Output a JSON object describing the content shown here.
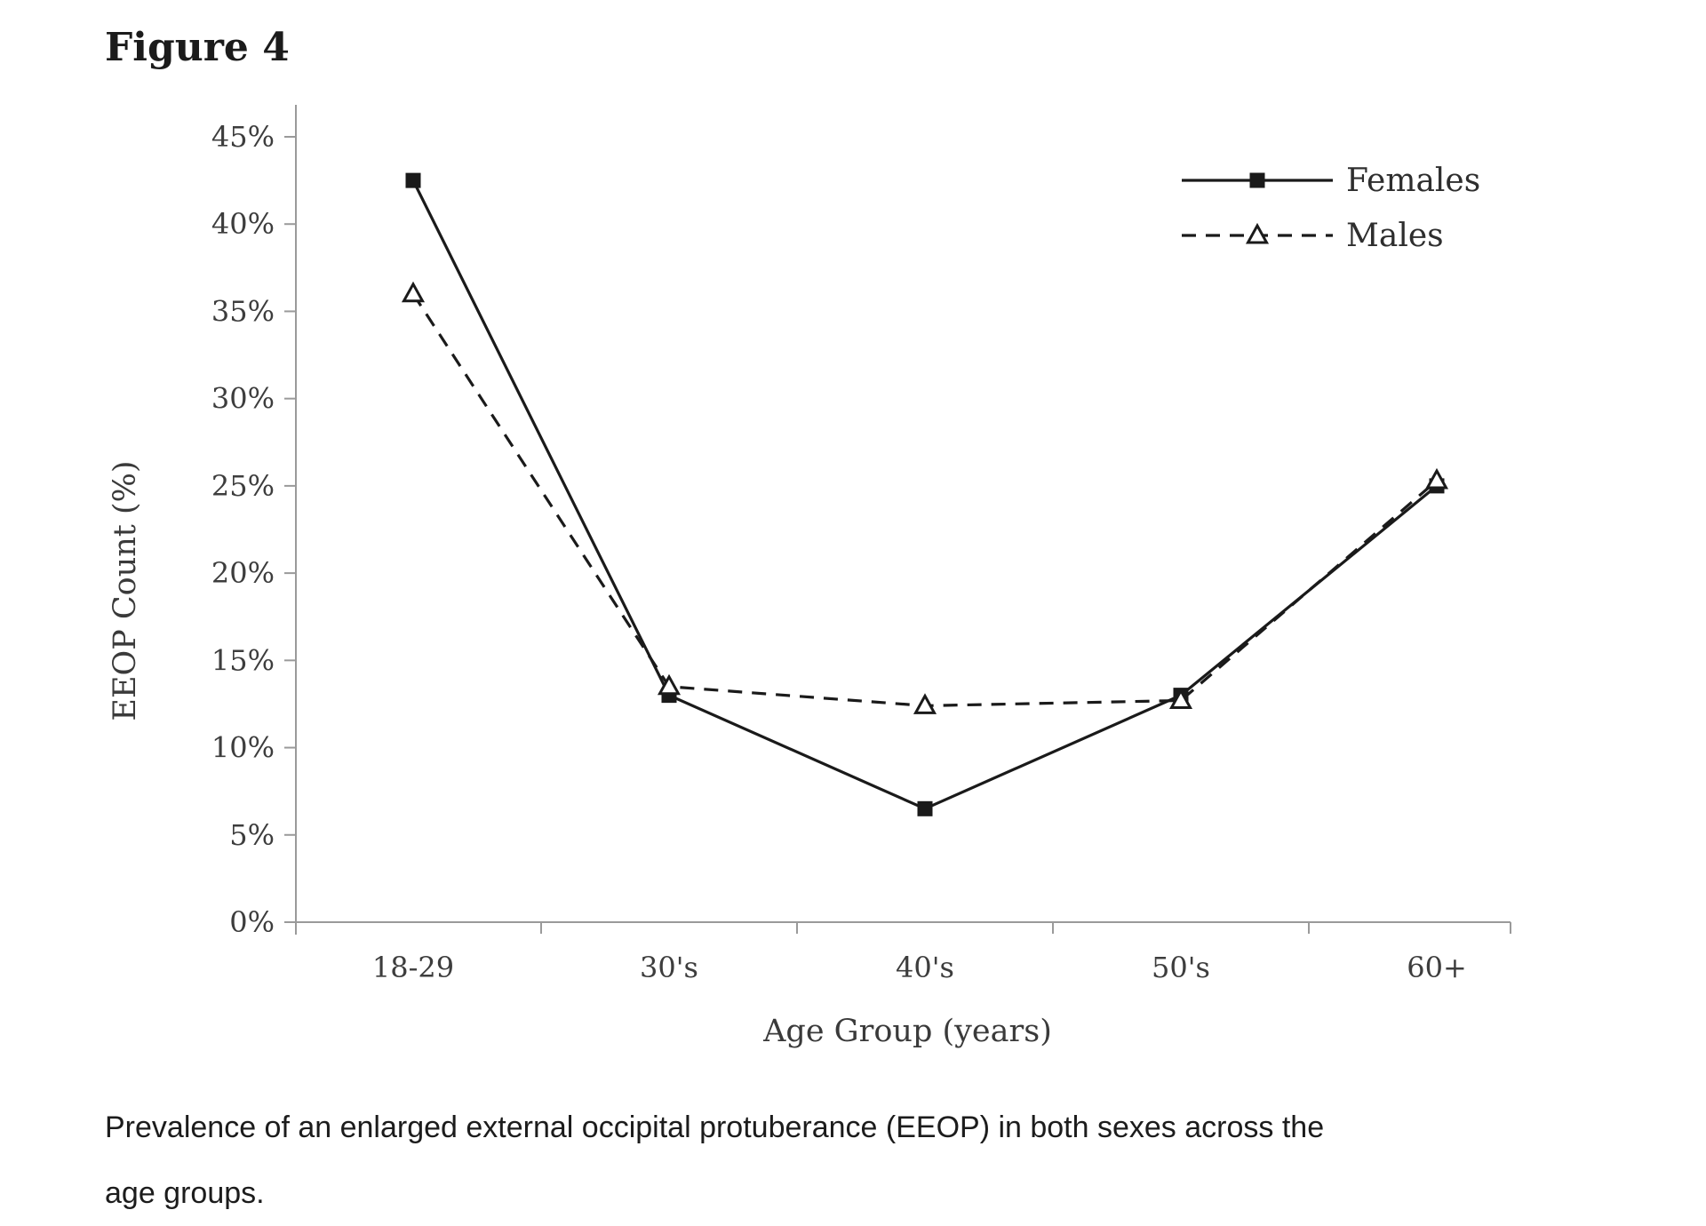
{
  "figure": {
    "title": "Figure 4"
  },
  "caption": {
    "line1": "Prevalence of an enlarged external occipital protuberance (EEOP) in both sexes across the",
    "line2": "age groups."
  },
  "chart_data": {
    "type": "line",
    "categories": [
      "18-29",
      "30's",
      "40's",
      "50's",
      "60+"
    ],
    "series": [
      {
        "name": "Females",
        "values": [
          42.5,
          13,
          6.5,
          13,
          25
        ],
        "line": "solid",
        "marker": "filled-square",
        "color": "#1a1a1a"
      },
      {
        "name": "Males",
        "values": [
          36,
          13.5,
          12.4,
          12.7,
          25.3
        ],
        "line": "dashed",
        "marker": "open-triangle",
        "color": "#1a1a1a"
      }
    ],
    "xlabel": "Age Group (years)",
    "ylabel": "EEOP Count (%)",
    "ylim": [
      0,
      45
    ],
    "ytick_step": 5,
    "ytick_suffix": "%",
    "grid": false,
    "legend_position": "top-right",
    "axis_color": "#9a9a9a",
    "tick_label_color": "#3d3d3d"
  }
}
